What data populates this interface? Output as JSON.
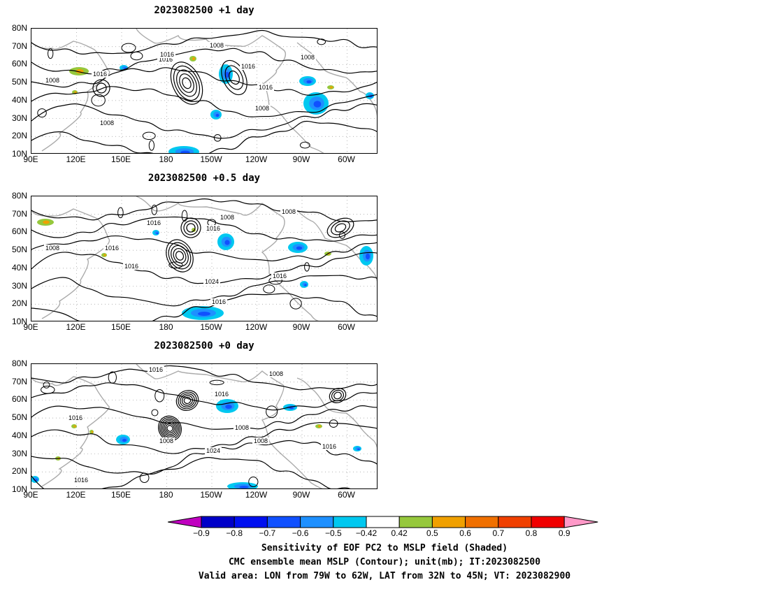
{
  "panels": [
    {
      "title": "2023082500  +1  day",
      "contour_labels": [
        "1008",
        "1016",
        "1016",
        "1016",
        "1008",
        "1016",
        "1008",
        "1016",
        "1008",
        "1008"
      ]
    },
    {
      "title": "2023082500  +0.5  day",
      "contour_labels": [
        "1008",
        "1016",
        "1008",
        "1016",
        "1016",
        "1016",
        "1024",
        "1016",
        "1016",
        "1008"
      ]
    },
    {
      "title": "2023082500  +0  day",
      "contour_labels": [
        "1016",
        "1008",
        "1016",
        "1016",
        "1008",
        "1024",
        "1016",
        "1008",
        "1016",
        "1008"
      ]
    }
  ],
  "axes": {
    "lat_labels": [
      "80N",
      "70N",
      "60N",
      "50N",
      "40N",
      "30N",
      "20N",
      "10N"
    ],
    "lon_labels": [
      "90E",
      "120E",
      "150E",
      "180",
      "150W",
      "120W",
      "90W",
      "60W"
    ],
    "lat_range": [
      10,
      80
    ],
    "lon_range": [
      "90E",
      "45W"
    ]
  },
  "colorbar": {
    "tick_labels": [
      "−0.9",
      "−0.8",
      "−0.7",
      "−0.6",
      "−0.5",
      "−0.42",
      "0.42",
      "0.5",
      "0.6",
      "0.7",
      "0.8",
      "0.9"
    ],
    "colors": [
      "#c000c0",
      "#0000c8",
      "#0010f0",
      "#1050ff",
      "#1e90ff",
      "#00c8f0",
      "#ffffff",
      "#96c83c",
      "#f0a000",
      "#f07000",
      "#f04000",
      "#f00000",
      "#ff99c8"
    ]
  },
  "captions": {
    "line1": "Sensitivity of EOF PC2 to MSLP field (Shaded)",
    "line2": "CMC ensemble mean MSLP (Contour); unit(mb); IT:2023082500",
    "line3": "Valid area: LON from 79W to 62W, LAT from 32N to 45N; VT: 2023082900"
  }
}
